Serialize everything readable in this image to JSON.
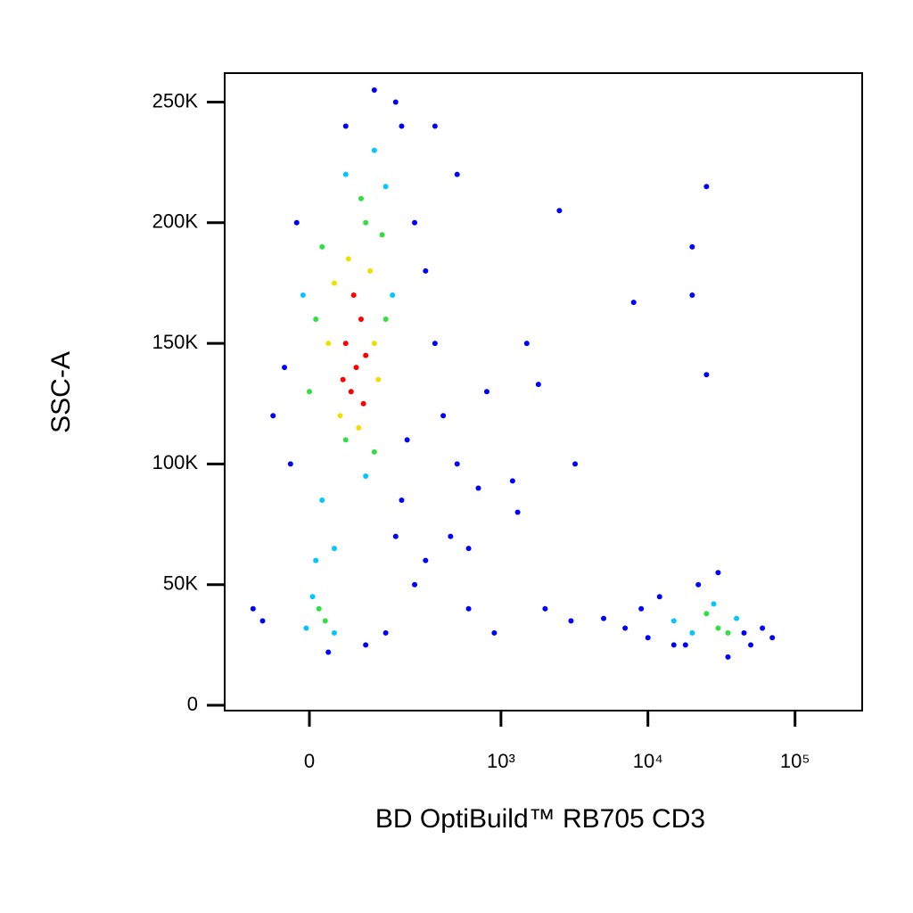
{
  "chart_data": {
    "type": "scatter",
    "xlabel": "BD OptiBuild™ RB705 CD3",
    "ylabel": "SSC-A",
    "xscale": "biexponential",
    "xlim": [
      -175,
      286000
    ],
    "ylim": [
      -2200,
      262000
    ],
    "xticks": [
      0,
      {
        "value": 1000,
        "label": "10³"
      },
      {
        "value": 10000,
        "label": "10⁴"
      },
      {
        "value": 100000,
        "label": "10⁵"
      }
    ],
    "yticks": [
      0,
      {
        "value": 50000,
        "label": "50K"
      },
      {
        "value": 100000,
        "label": "100K"
      },
      {
        "value": 150000,
        "label": "150K"
      },
      {
        "value": 200000,
        "label": "200K"
      },
      {
        "value": 250000,
        "label": "250K"
      }
    ],
    "grid": false,
    "series": [
      {
        "color": "#0000ff",
        "x": [
          -40,
          -60,
          -80,
          -100,
          200,
          180,
          250,
          300,
          350,
          400,
          500,
          300,
          250,
          450,
          600,
          700,
          800,
          1500,
          2500,
          900,
          2000,
          3000,
          5000,
          7000,
          9000,
          10000,
          12000,
          18000,
          22000,
          30000,
          45000,
          60000,
          70000,
          50000,
          35000,
          25000,
          20000,
          20000,
          8000,
          25000,
          15000,
          1200,
          3200,
          600,
          150,
          100,
          30,
          200,
          120,
          60,
          -20,
          -30,
          350,
          220,
          180,
          500,
          1300,
          1800
        ],
        "values": [
          140000,
          120000,
          35000,
          40000,
          240000,
          250000,
          200000,
          180000,
          150000,
          120000,
          100000,
          60000,
          50000,
          70000,
          65000,
          90000,
          130000,
          150000,
          205000,
          30000,
          40000,
          35000,
          36000,
          32000,
          40000,
          28000,
          45000,
          25000,
          50000,
          55000,
          30000,
          32000,
          28000,
          25000,
          20000,
          215000,
          190000,
          170000,
          167000,
          137000,
          25000,
          93000,
          100000,
          40000,
          30000,
          25000,
          22000,
          85000,
          255000,
          240000,
          200000,
          100000,
          240000,
          110000,
          70000,
          220000,
          80000,
          133000
        ]
      },
      {
        "color": "#00c8ff",
        "x": [
          -10,
          170,
          150,
          60,
          100,
          20,
          40,
          10,
          5,
          40,
          -5,
          20000,
          40000,
          28000,
          15000,
          120
        ],
        "values": [
          170000,
          170000,
          215000,
          220000,
          95000,
          85000,
          65000,
          60000,
          45000,
          30000,
          32000,
          30000,
          36000,
          42000,
          35000,
          230000
        ]
      },
      {
        "color": "#30e040",
        "x": [
          20,
          140,
          100,
          10,
          150,
          60,
          120,
          15,
          25,
          30000,
          25000,
          35000,
          90,
          0
        ],
        "values": [
          190000,
          195000,
          200000,
          160000,
          160000,
          110000,
          105000,
          40000,
          35000,
          32000,
          38000,
          30000,
          210000,
          130000
        ]
      },
      {
        "color": "#f0e000",
        "x": [
          40,
          110,
          120,
          50,
          85,
          130,
          30,
          65
        ],
        "values": [
          175000,
          180000,
          150000,
          120000,
          115000,
          135000,
          150000,
          185000
        ]
      },
      {
        "color": "#ff0000",
        "x": [
          60,
          80,
          90,
          70,
          100,
          75,
          55,
          95
        ],
        "values": [
          150000,
          140000,
          160000,
          130000,
          145000,
          170000,
          135000,
          125000
        ]
      }
    ]
  }
}
